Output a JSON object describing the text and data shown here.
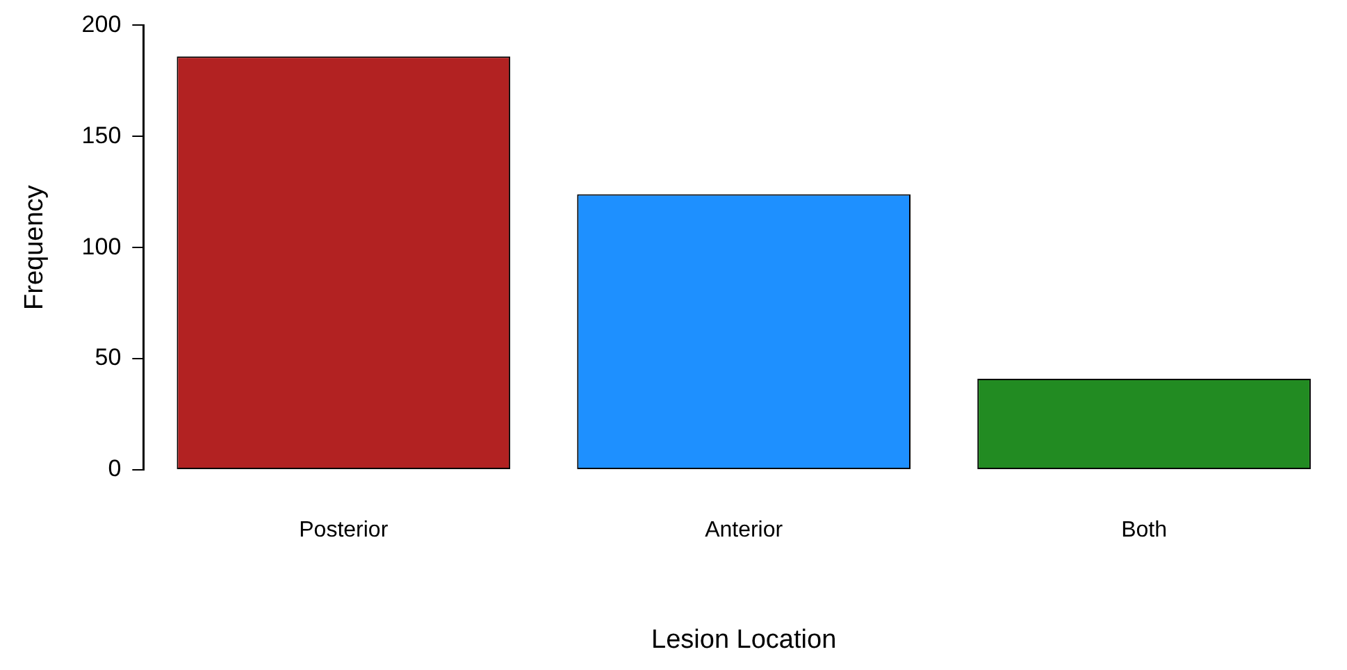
{
  "chart_data": {
    "type": "bar",
    "xlabel": "Lesion Location",
    "ylabel": "Frequency",
    "categories": [
      "Posterior",
      "Anterior",
      "Both"
    ],
    "values": [
      186,
      124,
      41
    ],
    "colors": [
      "#b22222",
      "#1e90ff",
      "#228b22"
    ],
    "ylim": [
      0,
      200
    ],
    "yticks": [
      0,
      50,
      100,
      150,
      200
    ],
    "grid": false,
    "legend": false
  }
}
